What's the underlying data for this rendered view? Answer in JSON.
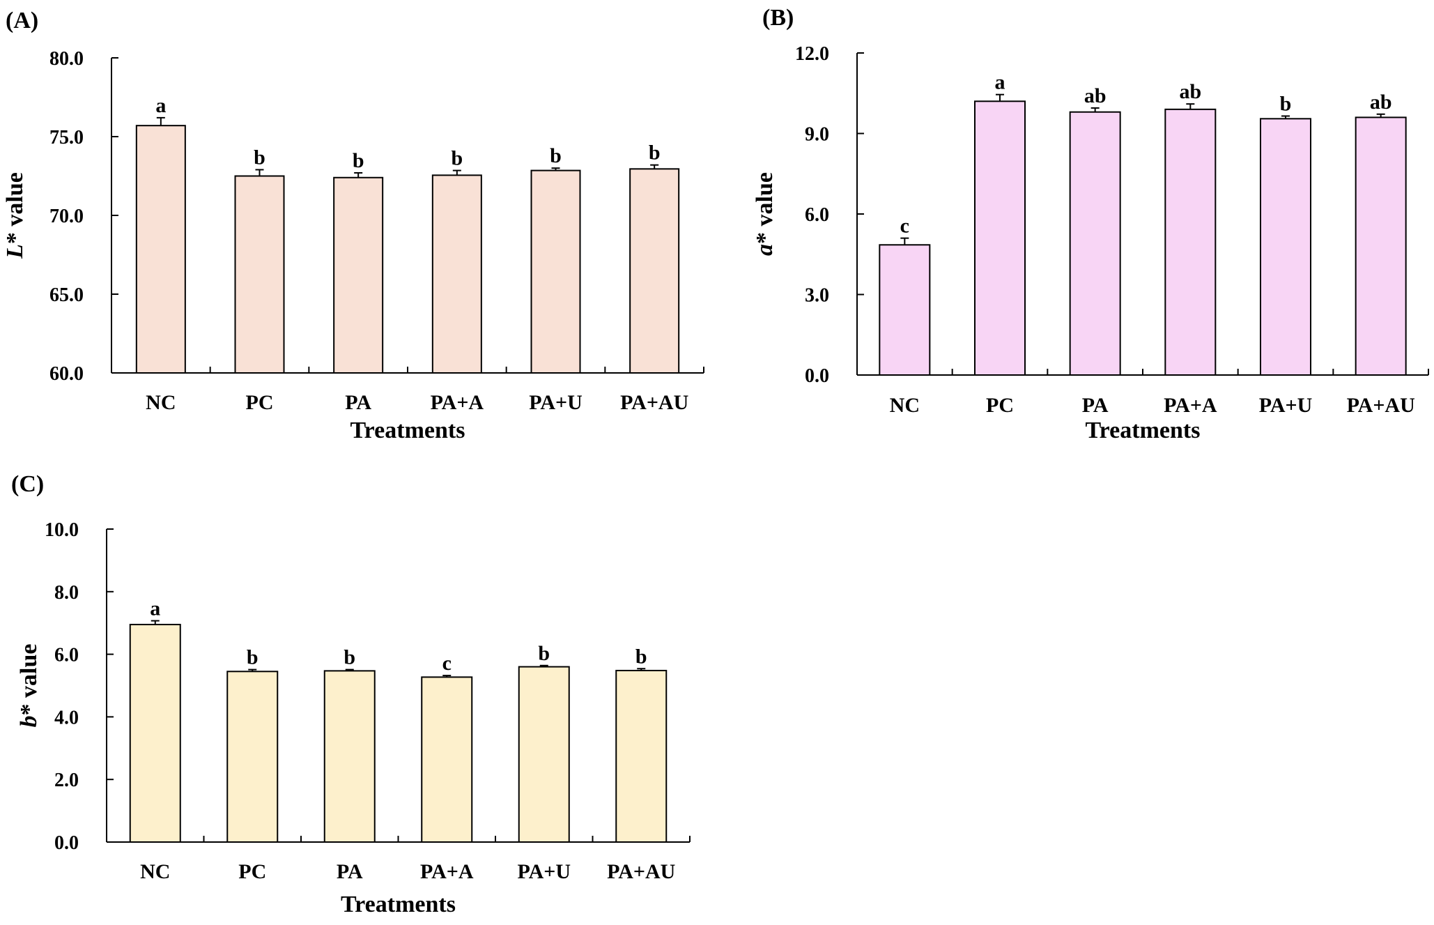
{
  "chart_data": [
    {
      "type": "bar",
      "panel": "(A)",
      "categories": [
        "NC",
        "PC",
        "PA",
        "PA+A",
        "PA+U",
        "PA+AU"
      ],
      "values": [
        75.7,
        72.5,
        72.4,
        72.55,
        72.85,
        72.95
      ],
      "errors": [
        0.5,
        0.4,
        0.3,
        0.3,
        0.15,
        0.25
      ],
      "significance": [
        "a",
        "b",
        "b",
        "b",
        "b",
        "b"
      ],
      "ylabel_italic": "L",
      "ylabel_rest": "* value",
      "xlabel": "Treatments",
      "ylim": [
        60,
        80
      ],
      "yticks": [
        "60.0",
        "65.0",
        "70.0",
        "75.0",
        "80.0"
      ],
      "color": "#f9e1d6"
    },
    {
      "type": "bar",
      "panel": "(B)",
      "categories": [
        "NC",
        "PC",
        "PA",
        "PA+A",
        "PA+U",
        "PA+AU"
      ],
      "values": [
        4.85,
        10.2,
        9.8,
        9.9,
        9.55,
        9.6
      ],
      "errors": [
        0.25,
        0.25,
        0.15,
        0.2,
        0.1,
        0.12
      ],
      "significance": [
        "c",
        "a",
        "ab",
        "ab",
        "b",
        "ab"
      ],
      "ylabel_italic": "a",
      "ylabel_rest": "* value",
      "xlabel": "Treatments",
      "ylim": [
        0,
        12
      ],
      "yticks": [
        "0.0",
        "3.0",
        "6.0",
        "9.0",
        "12.0"
      ],
      "color": "#f8d5f5"
    },
    {
      "type": "bar",
      "panel": "(C)",
      "categories": [
        "NC",
        "PC",
        "PA",
        "PA+A",
        "PA+U",
        "PA+AU"
      ],
      "values": [
        6.95,
        5.45,
        5.47,
        5.27,
        5.6,
        5.48
      ],
      "errors": [
        0.12,
        0.06,
        0.04,
        0.05,
        0.04,
        0.06
      ],
      "significance": [
        "a",
        "b",
        "b",
        "c",
        "b",
        "b"
      ],
      "ylabel_italic": "b",
      "ylabel_rest": "* value",
      "xlabel": "Treatments",
      "ylim": [
        0,
        10
      ],
      "yticks": [
        "0.0",
        "2.0",
        "4.0",
        "6.0",
        "8.0",
        "10.0"
      ],
      "color": "#fdf0cc"
    }
  ]
}
